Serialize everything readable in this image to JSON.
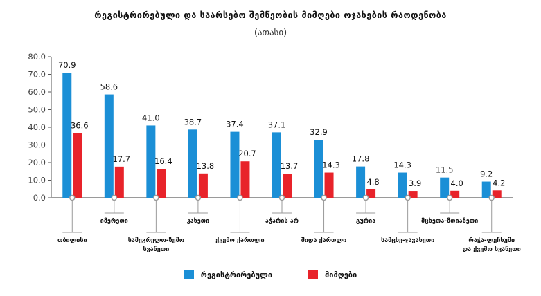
{
  "chart_data": {
    "type": "bar",
    "title": "რეგისტრირებული და საარსებო შემწეობის მიმღები ოჯახების რაოდენობა",
    "subtitle": "(ათასი)",
    "categories": [
      "თბილისი",
      "იმერეთი",
      "სამეგრელო-ზემო სვანეთი",
      "კახეთი",
      "ქვემო ქართლი",
      "აჭარის არ",
      "შიდა ქართლი",
      "გურია",
      "სამცხე-ჯავახეთი",
      "მცხეთა-მთიანეთი",
      "რაჭა-ლეჩხუმი და ქვემო სვანეთი"
    ],
    "category_lines": [
      [
        "თბილისი"
      ],
      [
        "იმერეთი"
      ],
      [
        "სამეგრელო-ზემო",
        "სვანეთი"
      ],
      [
        "კახეთი"
      ],
      [
        "ქვემო ქართლი"
      ],
      [
        "აჭარის არ"
      ],
      [
        "შიდა ქართლი"
      ],
      [
        "გურია"
      ],
      [
        "სამცხე-ჯავახეთი"
      ],
      [
        "მცხეთა-მთიანეთი"
      ],
      [
        "რაჭა-ლეჩხუმი",
        "და ქვემო სვანეთი"
      ]
    ],
    "series": [
      {
        "name": "რეგისტრირებული",
        "color": "#1b8fd6",
        "values": [
          70.9,
          58.6,
          41.0,
          38.7,
          37.4,
          37.1,
          32.9,
          17.8,
          14.3,
          11.5,
          9.2
        ]
      },
      {
        "name": "მიმღები",
        "color": "#e8232a",
        "values": [
          36.6,
          17.7,
          16.4,
          13.8,
          20.7,
          13.7,
          14.3,
          4.8,
          3.9,
          4.0,
          4.2
        ]
      }
    ],
    "ylim": [
      0,
      80
    ],
    "yticks": [
      "0.0",
      "10.0",
      "20.0",
      "30.0",
      "40.0",
      "50.0",
      "60.0",
      "70.0",
      "80.0"
    ],
    "grid": false,
    "legend_position": "bottom"
  }
}
